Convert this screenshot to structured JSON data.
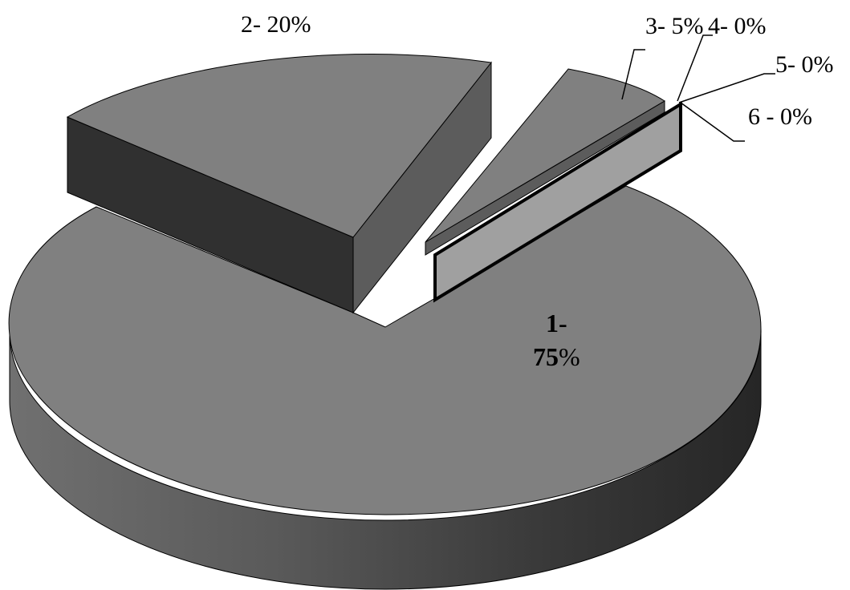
{
  "chart_data": {
    "type": "pie",
    "style": "3d-exploded",
    "categories": [
      "1",
      "2",
      "3",
      "4",
      "5",
      "6"
    ],
    "values": [
      75,
      20,
      5,
      0,
      0,
      0
    ],
    "labels": [
      "1-",
      "2- 20%",
      "3- 5%",
      "4- 0%",
      "5- 0%",
      "6 - 0%"
    ],
    "main_value_text": "75",
    "main_percent_text": "%",
    "colors": {
      "slice_top": "#808080",
      "slice_side_dark": "#303030",
      "slice_side_mid": "#5c5c5c",
      "slice_light": "#a0a0a0",
      "outline": "#000000"
    }
  }
}
